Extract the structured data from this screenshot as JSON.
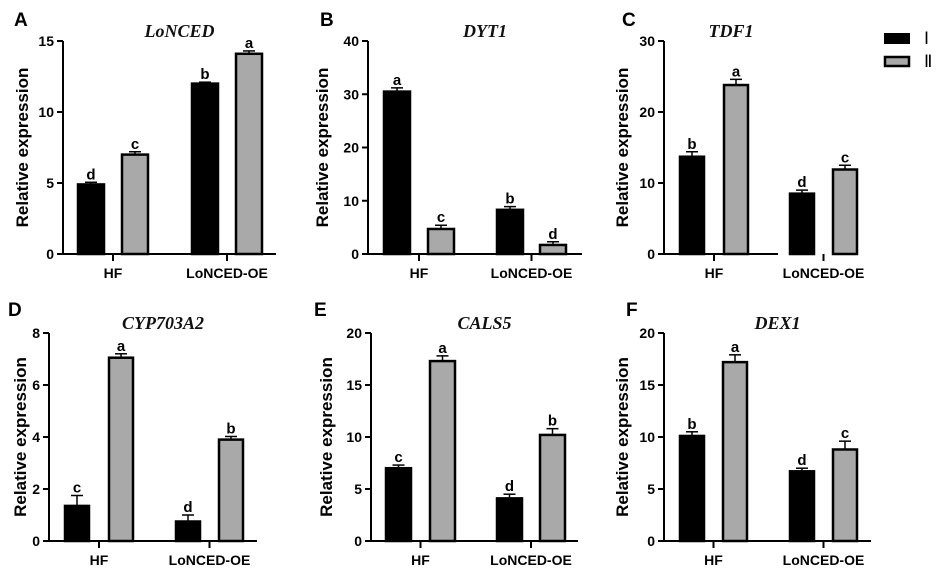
{
  "legend": {
    "position": "top-right",
    "entries": [
      {
        "label": "Ⅰ",
        "fill": "#000000"
      },
      {
        "label": "Ⅱ",
        "fill": "#a9a9a9"
      }
    ]
  },
  "colors": {
    "series_1": "#000000",
    "series_2": "#a9a9a9",
    "axis": "#000000"
  },
  "chart_data": [
    {
      "panel": "A",
      "type": "bar",
      "title": "LoNCED",
      "xlabel": "",
      "ylabel": "Relative expression",
      "categories": [
        "HF",
        "LoNCED-OE"
      ],
      "ylim": [
        0,
        15
      ],
      "yticks": [
        0,
        5,
        10,
        15
      ],
      "grid": false,
      "series": [
        {
          "name": "Ⅰ",
          "values": [
            4.9,
            12.0
          ],
          "errors": [
            0.15,
            0.1
          ],
          "letters": [
            "d",
            "b"
          ]
        },
        {
          "name": "Ⅱ",
          "values": [
            7.0,
            14.1
          ],
          "errors": [
            0.2,
            0.2
          ],
          "letters": [
            "c",
            "a"
          ]
        }
      ]
    },
    {
      "panel": "B",
      "type": "bar",
      "title": "DYT1",
      "xlabel": "",
      "ylabel": "Relative expression",
      "categories": [
        "HF",
        "LoNCED-OE"
      ],
      "ylim": [
        0,
        40
      ],
      "yticks": [
        0,
        10,
        20,
        30,
        40
      ],
      "grid": false,
      "series": [
        {
          "name": "Ⅰ",
          "values": [
            30.5,
            8.3
          ],
          "errors": [
            0.7,
            0.6
          ],
          "letters": [
            "a",
            "b"
          ]
        },
        {
          "name": "Ⅱ",
          "values": [
            4.7,
            1.7
          ],
          "errors": [
            0.7,
            0.6
          ],
          "letters": [
            "c",
            "d"
          ]
        }
      ]
    },
    {
      "panel": "C",
      "type": "bar",
      "title": "TDF1",
      "xlabel": "",
      "ylabel": "Relative expression",
      "categories": [
        "HF",
        "LoNCED-OE"
      ],
      "ylim": [
        0,
        30
      ],
      "yticks": [
        0,
        10,
        20,
        30
      ],
      "grid": false,
      "series": [
        {
          "name": "Ⅰ",
          "values": [
            13.7,
            8.5
          ],
          "errors": [
            0.7,
            0.5
          ],
          "letters": [
            "b",
            "d"
          ]
        },
        {
          "name": "Ⅱ",
          "values": [
            23.8,
            11.9
          ],
          "errors": [
            0.8,
            0.6
          ],
          "letters": [
            "a",
            "c"
          ]
        }
      ]
    },
    {
      "panel": "D",
      "type": "bar",
      "title": "CYP703A2",
      "xlabel": "",
      "ylabel": "Relative expression",
      "categories": [
        "HF",
        "LoNCED-OE"
      ],
      "ylim": [
        0,
        8
      ],
      "yticks": [
        0,
        2,
        4,
        6,
        8
      ],
      "grid": false,
      "series": [
        {
          "name": "Ⅰ",
          "values": [
            1.35,
            0.75
          ],
          "errors": [
            0.4,
            0.25
          ],
          "letters": [
            "c",
            "d"
          ]
        },
        {
          "name": "Ⅱ",
          "values": [
            7.05,
            3.9
          ],
          "errors": [
            0.15,
            0.12
          ],
          "letters": [
            "a",
            "b"
          ]
        }
      ]
    },
    {
      "panel": "E",
      "type": "bar",
      "title": "CALS5",
      "xlabel": "",
      "ylabel": "Relative expression",
      "categories": [
        "HF",
        "LoNCED-OE"
      ],
      "ylim": [
        0,
        20
      ],
      "yticks": [
        0,
        5,
        10,
        15,
        20
      ],
      "grid": false,
      "series": [
        {
          "name": "Ⅰ",
          "values": [
            7.0,
            4.1
          ],
          "errors": [
            0.3,
            0.4
          ],
          "letters": [
            "c",
            "d"
          ]
        },
        {
          "name": "Ⅱ",
          "values": [
            17.3,
            10.2
          ],
          "errors": [
            0.5,
            0.6
          ],
          "letters": [
            "a",
            "b"
          ]
        }
      ]
    },
    {
      "panel": "F",
      "type": "bar",
      "title": "DEX1",
      "xlabel": "",
      "ylabel": "Relative expression",
      "categories": [
        "HF",
        "LoNCED-OE"
      ],
      "ylim": [
        0,
        20
      ],
      "yticks": [
        0,
        5,
        10,
        15,
        20
      ],
      "grid": false,
      "series": [
        {
          "name": "Ⅰ",
          "values": [
            10.1,
            6.7
          ],
          "errors": [
            0.4,
            0.3
          ],
          "letters": [
            "b",
            "d"
          ]
        },
        {
          "name": "Ⅱ",
          "values": [
            17.2,
            8.8
          ],
          "errors": [
            0.7,
            0.8
          ],
          "letters": [
            "a",
            "c"
          ]
        }
      ]
    }
  ]
}
